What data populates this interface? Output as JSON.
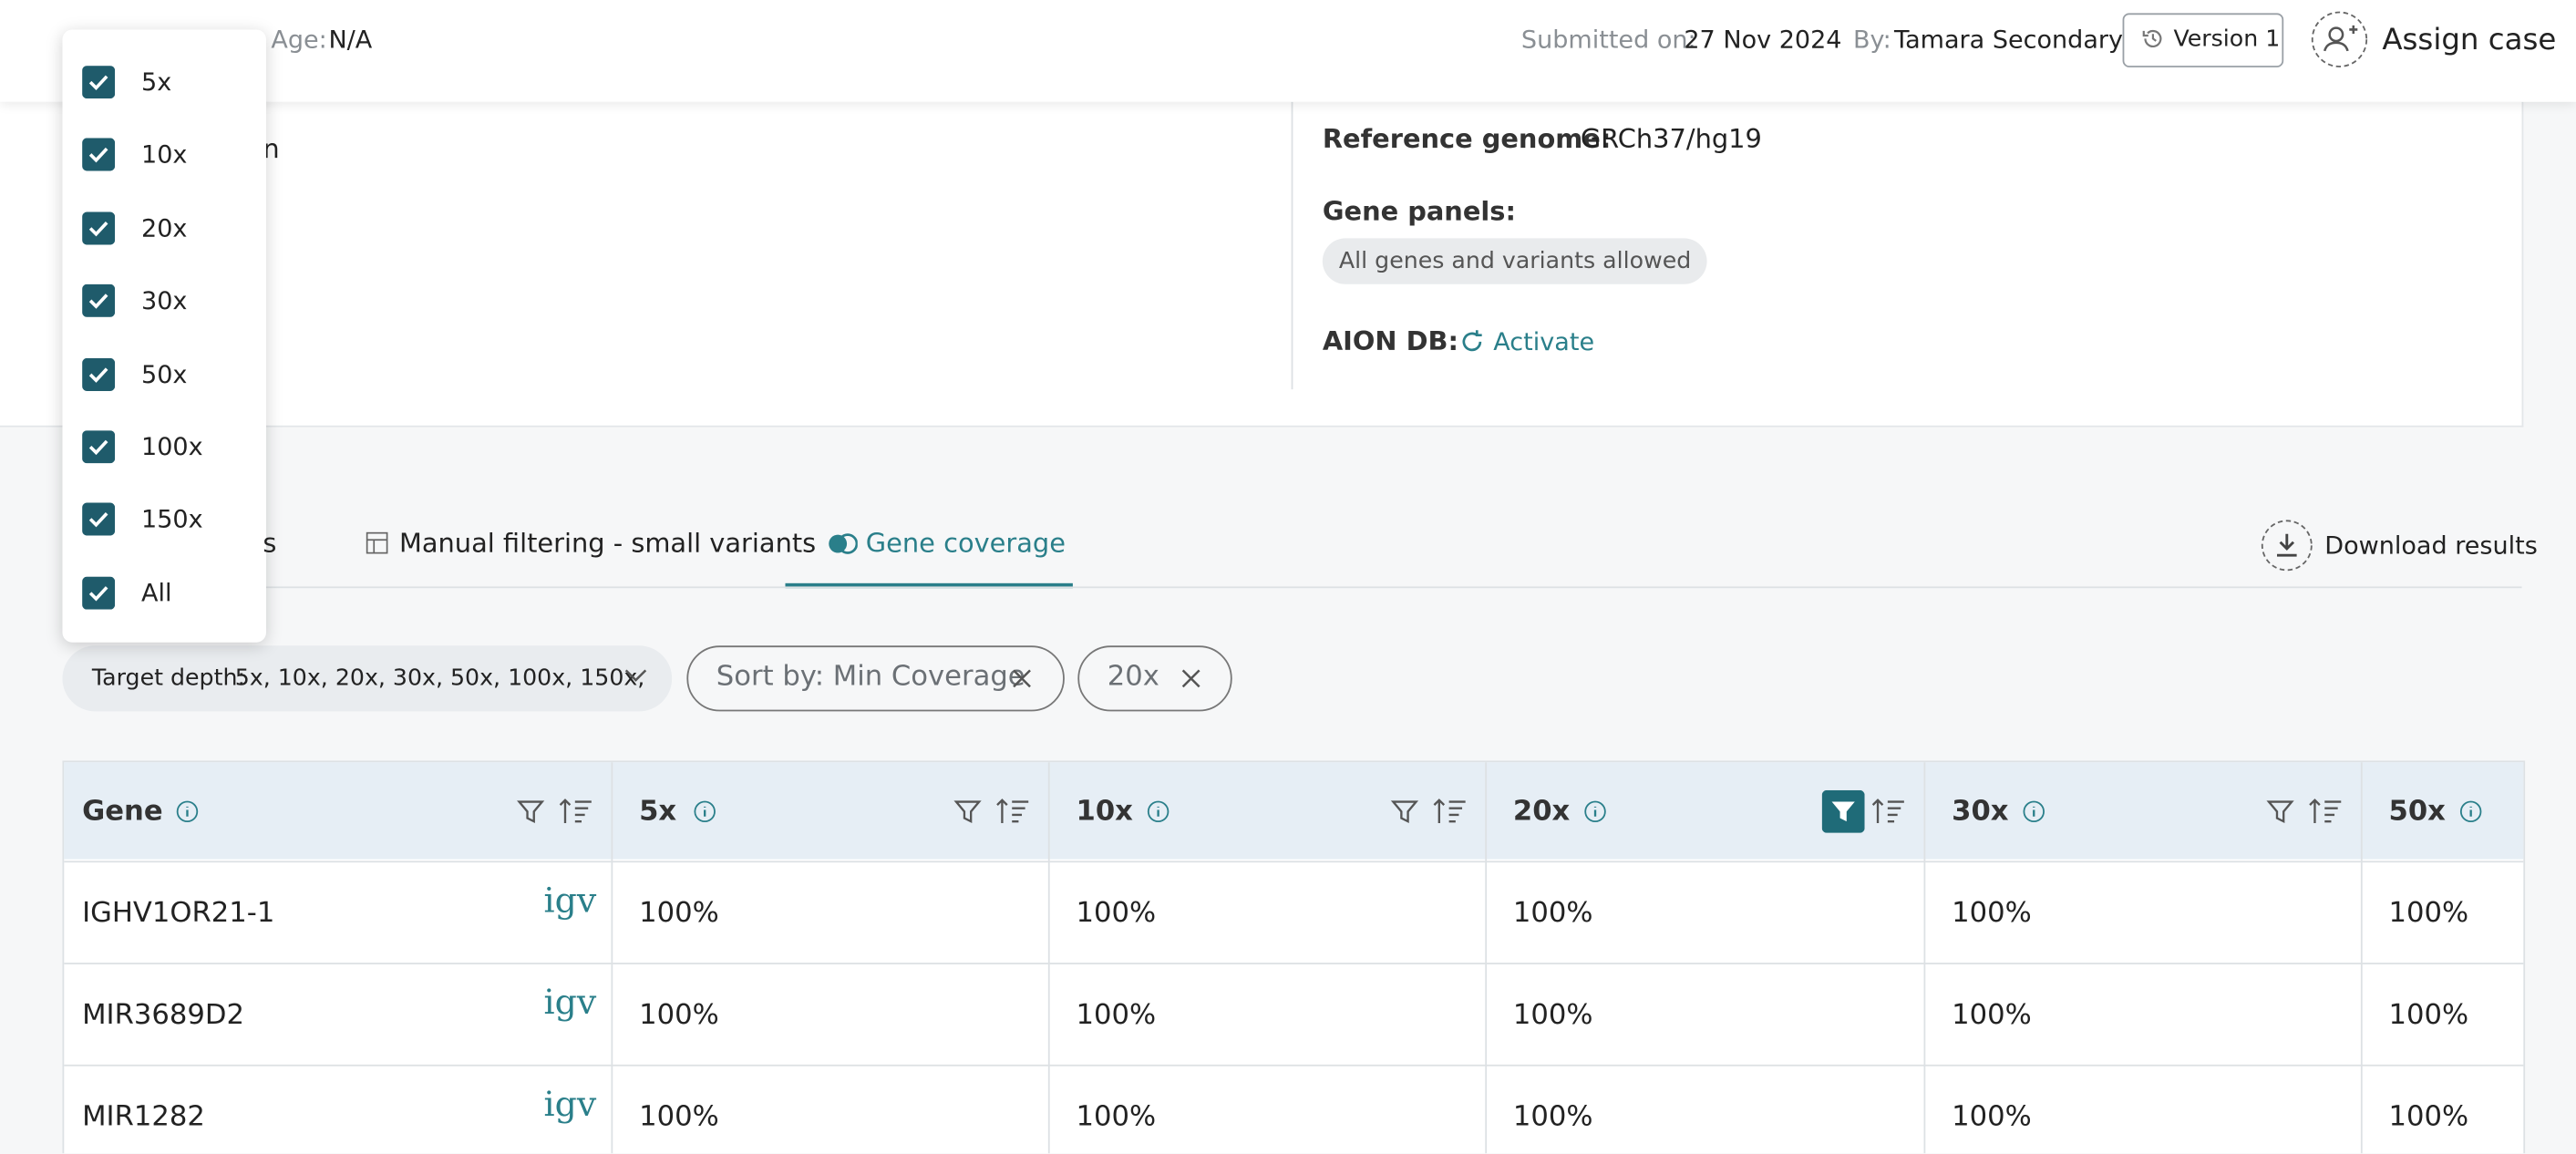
{
  "header": {
    "age_label": "Age:",
    "age": "N/A",
    "submitted_label": "Submitted on:",
    "submitted": "27 Nov 2024",
    "by_label": "By:",
    "by": "Tamara Secondary",
    "version": "Version 1",
    "assign": "Assign case"
  },
  "info": {
    "fragment": "n",
    "reference_label": "Reference genome:",
    "reference": "GRCh37/hg19",
    "gene_panels_label": "Gene panels:",
    "gene_panel": "All genes and variants allowed",
    "aion_label": "AION DB:",
    "activate": "Activate"
  },
  "tabs": [
    "s",
    "Manual filtering - small variants",
    "Gene coverage"
  ],
  "download": "Download results",
  "filters": {
    "target_label": "Target depth:",
    "target_values": "5x, 10x, 20x, 30x, 50x, 100x, 150x,",
    "sort": "Sort by: Min Coverage",
    "depth": "20x"
  },
  "dropdown": [
    "5x",
    "10x",
    "20x",
    "30x",
    "50x",
    "100x",
    "150x",
    "All"
  ],
  "table": {
    "columns": [
      "Gene",
      "5x",
      "10x",
      "20x",
      "30x",
      "50x"
    ],
    "igv": "igv",
    "rows": [
      [
        "IGHV1OR21-1",
        "100%",
        "100%",
        "100%",
        "100%",
        "100%"
      ],
      [
        "MIR3689D2",
        "100%",
        "100%",
        "100%",
        "100%",
        "100%"
      ],
      [
        "MIR1282",
        "100%",
        "100%",
        "100%",
        "100%",
        "100%"
      ]
    ]
  }
}
